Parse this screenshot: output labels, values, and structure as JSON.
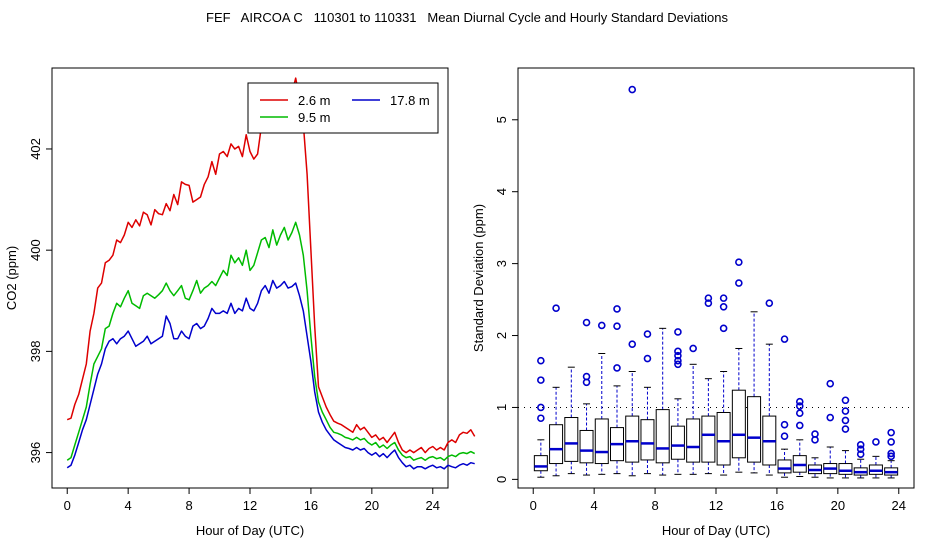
{
  "title": "FEF   AIRCOA C   110301 to 110331   Mean Diurnal Cycle and Hourly Standard Deviations",
  "colors": {
    "s26": "#dd0000",
    "s95": "#00bb00",
    "s178": "#0000cc",
    "box": "#000000",
    "median": "#0000cc"
  },
  "chart_data": [
    {
      "type": "line",
      "title": "",
      "xlabel": "Hour of Day (UTC)",
      "ylabel": "CO2 (ppm)",
      "xlim": [
        -1,
        25
      ],
      "ylim": [
        395.3,
        403.6
      ],
      "xticks": [
        0,
        4,
        8,
        12,
        16,
        20,
        24
      ],
      "xtick_labels": [
        "0",
        "4",
        "8",
        "12",
        "16",
        "20",
        "24"
      ],
      "yticks": [
        396,
        398,
        400,
        402
      ],
      "ytick_labels": [
        "396",
        "398",
        "400",
        "402"
      ],
      "legend": "top-right",
      "x_step": 0.25,
      "series": [
        {
          "name": "2.6 m",
          "color": "#dd0000",
          "values": [
            396.65,
            396.68,
            396.95,
            397.15,
            397.45,
            397.75,
            398.4,
            398.75,
            399.25,
            399.35,
            399.75,
            399.8,
            399.9,
            400.2,
            400.15,
            400.3,
            400.55,
            400.45,
            400.6,
            400.48,
            400.75,
            400.7,
            400.5,
            400.8,
            400.72,
            400.7,
            400.92,
            400.78,
            401.1,
            400.9,
            401.35,
            401.3,
            401.28,
            400.95,
            401.0,
            401.05,
            401.3,
            401.45,
            401.75,
            401.5,
            401.9,
            401.95,
            401.85,
            402.1,
            402.0,
            402.05,
            401.85,
            402.28,
            401.95,
            401.8,
            401.9,
            402.45,
            402.55,
            402.35,
            402.8,
            402.6,
            402.7,
            402.98,
            402.8,
            403.1,
            403.4,
            403.0,
            402.5,
            401.5,
            400.0,
            398.5,
            397.3,
            397.1,
            396.9,
            396.75,
            396.62,
            396.58,
            396.55,
            396.5,
            396.45,
            396.4,
            396.55,
            396.45,
            396.5,
            396.4,
            396.3,
            396.35,
            396.25,
            396.3,
            396.2,
            396.3,
            396.4,
            396.2,
            396.05,
            396.0,
            396.05,
            396.0,
            396.05,
            396.1,
            396.0,
            396.08,
            396.12,
            396.05,
            396.1,
            396.05,
            396.2,
            396.25,
            396.2,
            396.35,
            396.4,
            396.38,
            396.45,
            396.32
          ]
        },
        {
          "name": "9.5 m",
          "color": "#00bb00",
          "values": [
            395.85,
            395.9,
            396.15,
            396.4,
            396.65,
            396.9,
            397.35,
            397.75,
            397.9,
            398.05,
            398.45,
            398.5,
            398.75,
            398.95,
            398.88,
            399.05,
            399.2,
            398.95,
            398.9,
            398.85,
            399.1,
            399.15,
            399.1,
            399.05,
            399.12,
            399.2,
            399.35,
            399.2,
            399.1,
            399.2,
            399.3,
            399.05,
            399.02,
            399.2,
            399.4,
            399.15,
            399.25,
            399.3,
            399.38,
            399.3,
            399.45,
            399.6,
            399.5,
            399.9,
            399.75,
            399.85,
            399.7,
            400.0,
            399.6,
            399.7,
            399.95,
            400.2,
            400.25,
            400.05,
            400.4,
            400.1,
            400.3,
            400.45,
            400.2,
            400.35,
            400.55,
            400.3,
            399.9,
            399.2,
            398.3,
            397.5,
            397.0,
            396.8,
            396.65,
            396.5,
            396.4,
            396.38,
            396.35,
            396.3,
            396.28,
            396.25,
            396.3,
            396.25,
            396.28,
            396.2,
            396.15,
            396.2,
            396.1,
            396.15,
            396.08,
            396.15,
            396.2,
            396.05,
            395.95,
            395.9,
            395.92,
            395.85,
            395.88,
            395.9,
            395.85,
            395.9,
            395.92,
            395.88,
            395.9,
            395.85,
            395.92,
            395.95,
            395.92,
            395.98,
            396.0,
            395.98,
            396.02,
            395.98
          ]
        },
        {
          "name": "17.8 m",
          "color": "#0000cc",
          "values": [
            395.7,
            395.75,
            395.95,
            396.2,
            396.45,
            396.65,
            396.95,
            397.25,
            397.55,
            397.75,
            398.05,
            398.2,
            398.25,
            398.15,
            398.25,
            398.3,
            398.4,
            398.25,
            398.1,
            398.15,
            398.2,
            398.3,
            398.15,
            398.2,
            398.25,
            398.3,
            398.7,
            398.55,
            398.25,
            398.25,
            398.4,
            398.3,
            398.25,
            398.5,
            398.55,
            398.45,
            398.5,
            398.65,
            398.85,
            398.75,
            398.75,
            398.8,
            398.75,
            398.95,
            398.75,
            398.85,
            398.8,
            399.05,
            398.85,
            398.8,
            398.95,
            399.2,
            399.3,
            399.15,
            399.4,
            399.25,
            399.3,
            399.38,
            399.25,
            399.28,
            399.35,
            399.1,
            398.8,
            398.3,
            397.8,
            397.2,
            396.8,
            396.6,
            396.45,
            396.35,
            396.25,
            396.2,
            396.15,
            396.1,
            396.08,
            396.05,
            396.1,
            396.05,
            396.08,
            396.0,
            395.95,
            396.0,
            395.92,
            395.98,
            395.9,
            395.98,
            396.05,
            395.9,
            395.8,
            395.72,
            395.75,
            395.68,
            395.72,
            395.72,
            395.68,
            395.72,
            395.75,
            395.7,
            395.72,
            395.68,
            395.75,
            395.72,
            395.7,
            395.75,
            395.78,
            395.75,
            395.8,
            395.78
          ]
        }
      ]
    },
    {
      "type": "box",
      "title": "",
      "xlabel": "Hour of Day (UTC)",
      "ylabel": "Standard Deviation (ppm)",
      "xlim": [
        -1,
        25
      ],
      "ylim": [
        -0.12,
        5.72
      ],
      "xticks": [
        0,
        4,
        8,
        12,
        16,
        20,
        24
      ],
      "xtick_labels": [
        "0",
        "4",
        "8",
        "12",
        "16",
        "20",
        "24"
      ],
      "yticks": [
        0,
        1,
        2,
        3,
        4,
        5
      ],
      "ytick_labels": [
        "0",
        "1",
        "2",
        "3",
        "4",
        "5"
      ],
      "reference_line": 1,
      "boxes": [
        {
          "x": 0.5,
          "whisker_low": 0.03,
          "q1": 0.12,
          "median": 0.18,
          "q3": 0.33,
          "whisker_high": 0.55,
          "outliers": [
            0.85,
            1.0,
            1.38,
            1.65
          ]
        },
        {
          "x": 1.5,
          "whisker_low": 0.05,
          "q1": 0.22,
          "median": 0.42,
          "q3": 0.76,
          "whisker_high": 1.28,
          "outliers": [
            2.38
          ]
        },
        {
          "x": 2.5,
          "whisker_low": 0.08,
          "q1": 0.25,
          "median": 0.5,
          "q3": 0.86,
          "whisker_high": 1.56,
          "outliers": []
        },
        {
          "x": 3.5,
          "whisker_low": 0.06,
          "q1": 0.23,
          "median": 0.4,
          "q3": 0.68,
          "whisker_high": 1.05,
          "outliers": [
            1.35,
            1.43,
            2.18
          ]
        },
        {
          "x": 4.5,
          "whisker_low": 0.07,
          "q1": 0.22,
          "median": 0.38,
          "q3": 0.84,
          "whisker_high": 1.75,
          "outliers": [
            2.14
          ]
        },
        {
          "x": 5.5,
          "whisker_low": 0.08,
          "q1": 0.26,
          "median": 0.49,
          "q3": 0.72,
          "whisker_high": 1.3,
          "outliers": [
            1.55,
            2.13,
            2.37
          ]
        },
        {
          "x": 6.5,
          "whisker_low": 0.05,
          "q1": 0.24,
          "median": 0.53,
          "q3": 0.88,
          "whisker_high": 1.5,
          "outliers": [
            1.88,
            5.42
          ]
        },
        {
          "x": 7.5,
          "whisker_low": 0.08,
          "q1": 0.27,
          "median": 0.5,
          "q3": 0.83,
          "whisker_high": 1.28,
          "outliers": [
            1.68,
            2.02
          ]
        },
        {
          "x": 8.5,
          "whisker_low": 0.06,
          "q1": 0.23,
          "median": 0.43,
          "q3": 0.97,
          "whisker_high": 2.1,
          "outliers": []
        },
        {
          "x": 9.5,
          "whisker_low": 0.07,
          "q1": 0.28,
          "median": 0.47,
          "q3": 0.74,
          "whisker_high": 1.12,
          "outliers": [
            1.6,
            1.65,
            1.72,
            1.78,
            2.05
          ]
        },
        {
          "x": 10.5,
          "whisker_low": 0.07,
          "q1": 0.24,
          "median": 0.45,
          "q3": 0.84,
          "whisker_high": 1.6,
          "outliers": [
            1.82
          ]
        },
        {
          "x": 11.5,
          "whisker_low": 0.08,
          "q1": 0.24,
          "median": 0.62,
          "q3": 0.88,
          "whisker_high": 1.4,
          "outliers": [
            2.45,
            2.52
          ]
        },
        {
          "x": 12.5,
          "whisker_low": 0.06,
          "q1": 0.2,
          "median": 0.53,
          "q3": 0.93,
          "whisker_high": 1.5,
          "outliers": [
            2.1,
            2.4,
            2.52
          ]
        },
        {
          "x": 13.5,
          "whisker_low": 0.1,
          "q1": 0.3,
          "median": 0.62,
          "q3": 1.24,
          "whisker_high": 1.82,
          "outliers": [
            2.73,
            3.02
          ]
        },
        {
          "x": 14.5,
          "whisker_low": 0.09,
          "q1": 0.24,
          "median": 0.58,
          "q3": 1.15,
          "whisker_high": 2.33,
          "outliers": []
        },
        {
          "x": 15.5,
          "whisker_low": 0.06,
          "q1": 0.2,
          "median": 0.53,
          "q3": 0.88,
          "whisker_high": 1.88,
          "outliers": [
            2.45
          ]
        },
        {
          "x": 16.5,
          "whisker_low": 0.03,
          "q1": 0.09,
          "median": 0.15,
          "q3": 0.27,
          "whisker_high": 0.42,
          "outliers": [
            0.6,
            0.76,
            1.95
          ]
        },
        {
          "x": 17.5,
          "whisker_low": 0.04,
          "q1": 0.1,
          "median": 0.2,
          "q3": 0.33,
          "whisker_high": 0.55,
          "outliers": [
            0.75,
            0.92,
            1.02,
            1.08
          ]
        },
        {
          "x": 18.5,
          "whisker_low": 0.03,
          "q1": 0.08,
          "median": 0.13,
          "q3": 0.2,
          "whisker_high": 0.3,
          "outliers": [
            0.55,
            0.63
          ]
        },
        {
          "x": 19.5,
          "whisker_low": 0.02,
          "q1": 0.08,
          "median": 0.15,
          "q3": 0.22,
          "whisker_high": 0.45,
          "outliers": [
            0.86,
            1.33
          ]
        },
        {
          "x": 20.5,
          "whisker_low": 0.02,
          "q1": 0.07,
          "median": 0.12,
          "q3": 0.22,
          "whisker_high": 0.4,
          "outliers": [
            0.7,
            0.82,
            0.95,
            1.1
          ]
        },
        {
          "x": 21.5,
          "whisker_low": 0.02,
          "q1": 0.06,
          "median": 0.1,
          "q3": 0.16,
          "whisker_high": 0.28,
          "outliers": [
            0.35,
            0.42,
            0.48
          ]
        },
        {
          "x": 22.5,
          "whisker_low": 0.02,
          "q1": 0.07,
          "median": 0.12,
          "q3": 0.2,
          "whisker_high": 0.32,
          "outliers": [
            0.52
          ]
        },
        {
          "x": 23.5,
          "whisker_low": 0.02,
          "q1": 0.06,
          "median": 0.1,
          "q3": 0.16,
          "whisker_high": 0.26,
          "outliers": [
            0.32,
            0.36,
            0.52,
            0.65
          ]
        }
      ]
    }
  ]
}
